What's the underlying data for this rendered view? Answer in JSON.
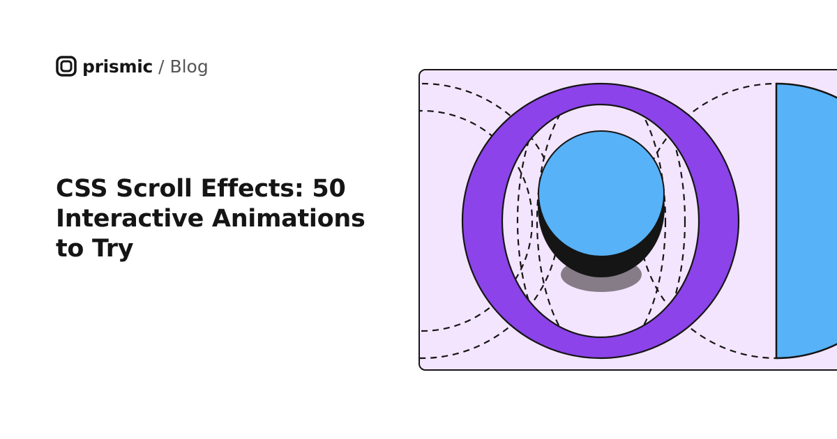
{
  "brand": {
    "name": "prismic",
    "separator": "/",
    "section": "Blog",
    "icon": "prismic-logo-icon"
  },
  "title": "CSS Scroll Effects: 50 Interactive Animations to Try",
  "colors": {
    "card_bg": "#f3e5fd",
    "ring": "#8c43e9",
    "blue": "#58b2f7",
    "ink": "#151515",
    "shadow": "#857c88"
  }
}
